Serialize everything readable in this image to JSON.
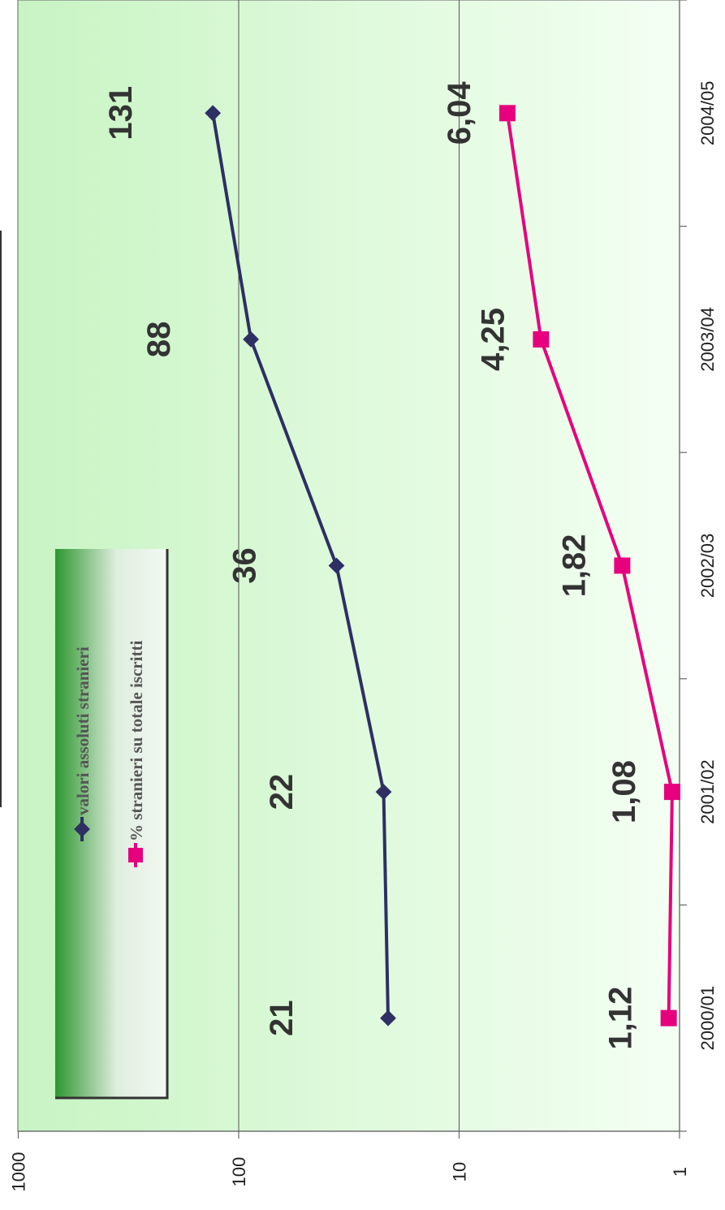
{
  "chart_data": {
    "type": "line",
    "orientation": "rotated-90-clockwise",
    "categories": [
      "2000/01",
      "2001/02",
      "2002/03",
      "2003/04",
      "2004/05"
    ],
    "yscale": "log",
    "ylim": [
      1,
      1000
    ],
    "yticks": [
      "1",
      "10",
      "100",
      "1000"
    ],
    "grid": true,
    "legend_position": "top-left",
    "series": [
      {
        "name": "valori assoluti stranieri",
        "values": [
          21,
          22,
          36,
          88,
          131
        ],
        "labels": [
          "21",
          "22",
          "36",
          "88",
          "131"
        ],
        "color": "#2e2f63",
        "marker": "diamond"
      },
      {
        "name": "% stranieri su totale iscritti",
        "values": [
          1.12,
          1.08,
          1.82,
          4.25,
          6.04
        ],
        "labels": [
          "1,12",
          "1,08",
          "1,82",
          "4,25",
          "6,04"
        ],
        "color": "#e6007e",
        "marker": "square"
      }
    ]
  }
}
